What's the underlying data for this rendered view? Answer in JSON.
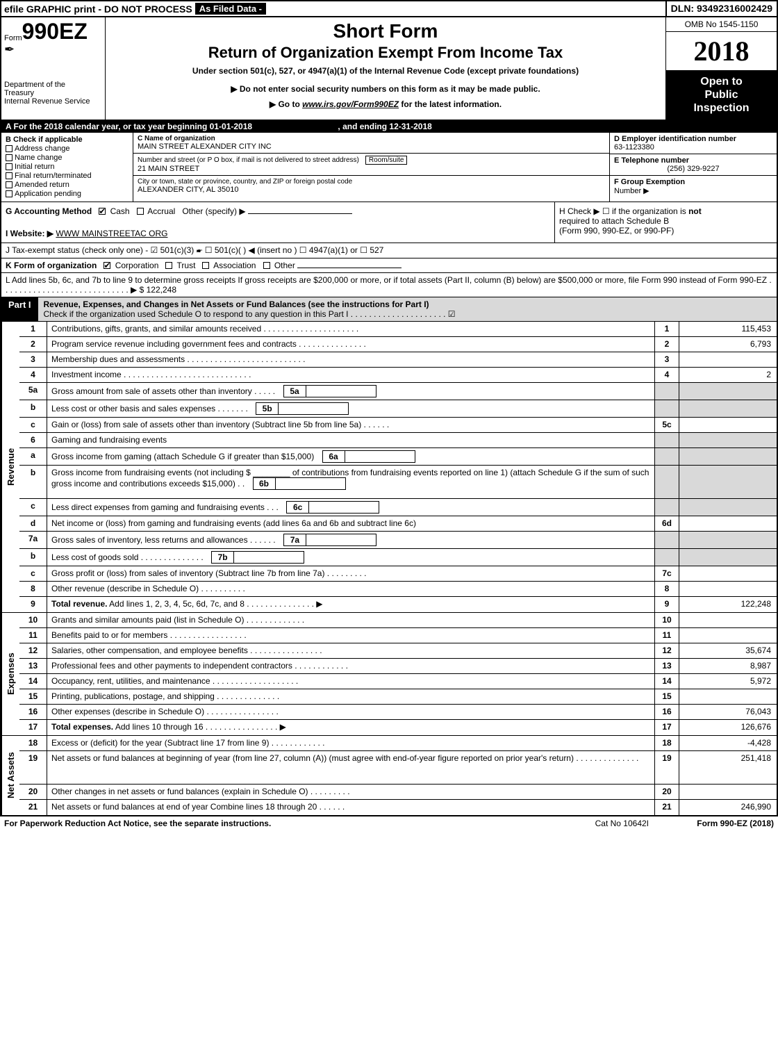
{
  "top": {
    "efile": "efile GRAPHIC print - DO NOT PROCESS",
    "asfiled": "As Filed Data -",
    "dln": "DLN: 93492316002429"
  },
  "header": {
    "form_prefix": "Form",
    "form_number": "990EZ",
    "dept1": "Department of the",
    "dept2": "Treasury",
    "dept3": "Internal Revenue Service",
    "short_form": "Short Form",
    "return_title": "Return of Organization Exempt From Income Tax",
    "subtitle": "Under section 501(c), 527, or 4947(a)(1) of the Internal Revenue Code (except private foundations)",
    "notice": "▶ Do not enter social security numbers on this form as it may be made public.",
    "goto_pre": "▶ Go to ",
    "goto_link": "www.irs.gov/Form990EZ",
    "goto_post": " for the latest information.",
    "omb": "OMB No 1545-1150",
    "year": "2018",
    "open1": "Open to",
    "open2": "Public",
    "open3": "Inspection"
  },
  "A": {
    "text_pre": "A  For the 2018 calendar year, or tax year beginning ",
    "begin": "01-01-2018",
    "mid": " , and ending ",
    "end": "12-31-2018"
  },
  "B": {
    "label": "B  Check if applicable",
    "items": [
      "Address change",
      "Name change",
      "Initial return",
      "Final return/terminated",
      "Amended return",
      "Application pending"
    ]
  },
  "C": {
    "name_lbl": "C Name of organization",
    "name": "MAIN STREET ALEXANDER CITY INC",
    "addr_lbl": "Number and street (or P O box, if mail is not delivered to street address)",
    "room_lbl": "Room/suite",
    "addr": "21 MAIN STREET",
    "city_lbl": "City or town, state or province, country, and ZIP or foreign postal code",
    "city": "ALEXANDER CITY, AL  35010"
  },
  "D": {
    "lbl": "D Employer identification number",
    "val": "63-1123380",
    "tel_lbl": "E Telephone number",
    "tel": "(256) 329-9227",
    "grp_lbl": "F Group Exemption",
    "grp2": "Number   ▶"
  },
  "G": {
    "lbl": "G Accounting Method",
    "cash": "Cash",
    "accr": "Accrual",
    "other": "Other (specify) ▶"
  },
  "H": {
    "text1": "H  Check ▶  ☐  if the organization is ",
    "not": "not",
    "text2": "required to attach Schedule B",
    "text3": "(Form 990, 990-EZ, or 990-PF)"
  },
  "I": {
    "lbl": "I Website: ▶",
    "val": "WWW MAINSTREETAC ORG"
  },
  "J": {
    "text": "J Tax-exempt status (check only one) - ☑ 501(c)(3) 🖝 ☐ 501(c)(  ) ◀ (insert no ) ☐ 4947(a)(1) or ☐ 527"
  },
  "K": {
    "lbl": "K Form of organization",
    "corp": "Corporation",
    "trust": "Trust",
    "assoc": "Association",
    "other": "Other"
  },
  "L": {
    "text": "L Add lines 5b, 6c, and 7b to line 9 to determine gross receipts  If gross receipts are $200,000 or more, or if total assets (Part II, column (B) below) are $500,000 or more, file Form 990 instead of Form 990-EZ . . . . . . . . . . . . . . . . . . . . . . . . . . . . ▶",
    "amount": "$ 122,248"
  },
  "part1": {
    "tag": "Part I",
    "title": "Revenue, Expenses, and Changes in Net Assets or Fund Balances (see the instructions for Part I)",
    "sub": "Check if the organization used Schedule O to respond to any question in this Part I . . . . . . . . . . . . . . . . . . . . . ☑"
  },
  "sections": {
    "revenue": "Revenue",
    "expenses": "Expenses",
    "netassets": "Net Assets"
  },
  "lines": [
    {
      "n": "1",
      "desc": "Contributions, gifts, grants, and similar amounts received . . . . . . . . . . . . . . . . . . . . .",
      "ln": "1",
      "amt": "115,453"
    },
    {
      "n": "2",
      "desc": "Program service revenue including government fees and contracts . . . . . . . . . . . . . . .",
      "ln": "2",
      "amt": "6,793"
    },
    {
      "n": "3",
      "desc": "Membership dues and assessments . . . . . . . . . . . . . . . . . . . . . . . . . .",
      "ln": "3",
      "amt": ""
    },
    {
      "n": "4",
      "desc": "Investment income . . . . . . . . . . . . . . . . . . . . . . . . . . . .",
      "ln": "4",
      "amt": "2"
    },
    {
      "n": "5a",
      "desc": "Gross amount from sale of assets other than inventory . . . . .",
      "box": "5a",
      "ln": "",
      "amt": "",
      "shaded": true
    },
    {
      "n": "b",
      "desc": "Less cost or other basis and sales expenses . . . . . . .",
      "box": "5b",
      "ln": "",
      "amt": "",
      "shaded": true
    },
    {
      "n": "c",
      "desc": "Gain or (loss) from sale of assets other than inventory (Subtract line 5b from line 5a) . . . . . .",
      "ln": "5c",
      "amt": ""
    },
    {
      "n": "6",
      "desc": "Gaming and fundraising events",
      "ln": "",
      "amt": "",
      "shaded": true
    },
    {
      "n": "a",
      "desc": "Gross income from gaming (attach Schedule G if greater than $15,000)",
      "box": "6a",
      "ln": "",
      "amt": "",
      "shaded": true
    },
    {
      "n": "b",
      "desc": "Gross income from fundraising events (not including $ ________ of contributions from fundraising events reported on line 1) (attach Schedule G if the sum of such gross income and contributions exceeds $15,000)   . .",
      "box": "6b",
      "ln": "",
      "amt": "",
      "shaded": true,
      "tall": true
    },
    {
      "n": "c",
      "desc": "Less direct expenses from gaming and fundraising events    . . .",
      "box": "6c",
      "ln": "",
      "amt": "",
      "shaded": true
    },
    {
      "n": "d",
      "desc": "Net income or (loss) from gaming and fundraising events (add lines 6a and 6b and subtract line 6c)",
      "ln": "6d",
      "amt": ""
    },
    {
      "n": "7a",
      "desc": "Gross sales of inventory, less returns and allowances . . . . . .",
      "box": "7a",
      "ln": "",
      "amt": "",
      "shaded": true
    },
    {
      "n": "b",
      "desc": "Less cost of goods sold           . . . . . . . . . . . . . .",
      "box": "7b",
      "ln": "",
      "amt": "",
      "shaded": true
    },
    {
      "n": "c",
      "desc": "Gross profit or (loss) from sales of inventory (Subtract line 7b from line 7a) . . . . . . . . .",
      "ln": "7c",
      "amt": ""
    },
    {
      "n": "8",
      "desc": "Other revenue (describe in Schedule O)               . . . . . . . . . .",
      "ln": "8",
      "amt": ""
    },
    {
      "n": "9",
      "desc": "Total revenue. Add lines 1, 2, 3, 4, 5c, 6d, 7c, and 8 . . . . . . . . . . . . . . .   ▶",
      "ln": "9",
      "amt": "122,248",
      "bold": true
    }
  ],
  "exp_lines": [
    {
      "n": "10",
      "desc": "Grants and similar amounts paid (list in Schedule O)           . . . . . . . . . . . . .",
      "ln": "10",
      "amt": ""
    },
    {
      "n": "11",
      "desc": "Benefits paid to or for members           . . . . . . . . . . . . . . . . .",
      "ln": "11",
      "amt": ""
    },
    {
      "n": "12",
      "desc": "Salaries, other compensation, and employee benefits . . . . . . . . . . . . . . . .",
      "ln": "12",
      "amt": "35,674"
    },
    {
      "n": "13",
      "desc": "Professional fees and other payments to independent contractors . . . . . . . . . . . .",
      "ln": "13",
      "amt": "8,987"
    },
    {
      "n": "14",
      "desc": "Occupancy, rent, utilities, and maintenance . . . . . . . . . . . . . . . . . . .",
      "ln": "14",
      "amt": "5,972"
    },
    {
      "n": "15",
      "desc": "Printing, publications, postage, and shipping           . . . . . . . . . . . . . .",
      "ln": "15",
      "amt": ""
    },
    {
      "n": "16",
      "desc": "Other expenses (describe in Schedule O)           . . . . . . . . . . . . . . . .",
      "ln": "16",
      "amt": "76,043"
    },
    {
      "n": "17",
      "desc": "Total expenses. Add lines 10 through 16      . . . . . . . . . . . . . . . .   ▶",
      "ln": "17",
      "amt": "126,676",
      "bold": true
    }
  ],
  "na_lines": [
    {
      "n": "18",
      "desc": "Excess or (deficit) for the year (Subtract line 17 from line 9)      . . . . . . . . . . . .",
      "ln": "18",
      "amt": "-4,428"
    },
    {
      "n": "19",
      "desc": "Net assets or fund balances at beginning of year (from line 27, column (A)) (must agree with end-of-year figure reported on prior year's return)           . . . . . . . . . . . . . .",
      "ln": "19",
      "amt": "251,418",
      "tall": true
    },
    {
      "n": "20",
      "desc": "Other changes in net assets or fund balances (explain in Schedule O)     . . . . . . . . .",
      "ln": "20",
      "amt": ""
    },
    {
      "n": "21",
      "desc": "Net assets or fund balances at end of year  Combine lines 18 through 20        . . . . . .",
      "ln": "21",
      "amt": "246,990"
    }
  ],
  "footer": {
    "left": "For Paperwork Reduction Act Notice, see the separate instructions.",
    "mid": "Cat No 10642I",
    "right_pre": "Form ",
    "right_bold": "990-EZ",
    "right_post": " (2018)"
  }
}
